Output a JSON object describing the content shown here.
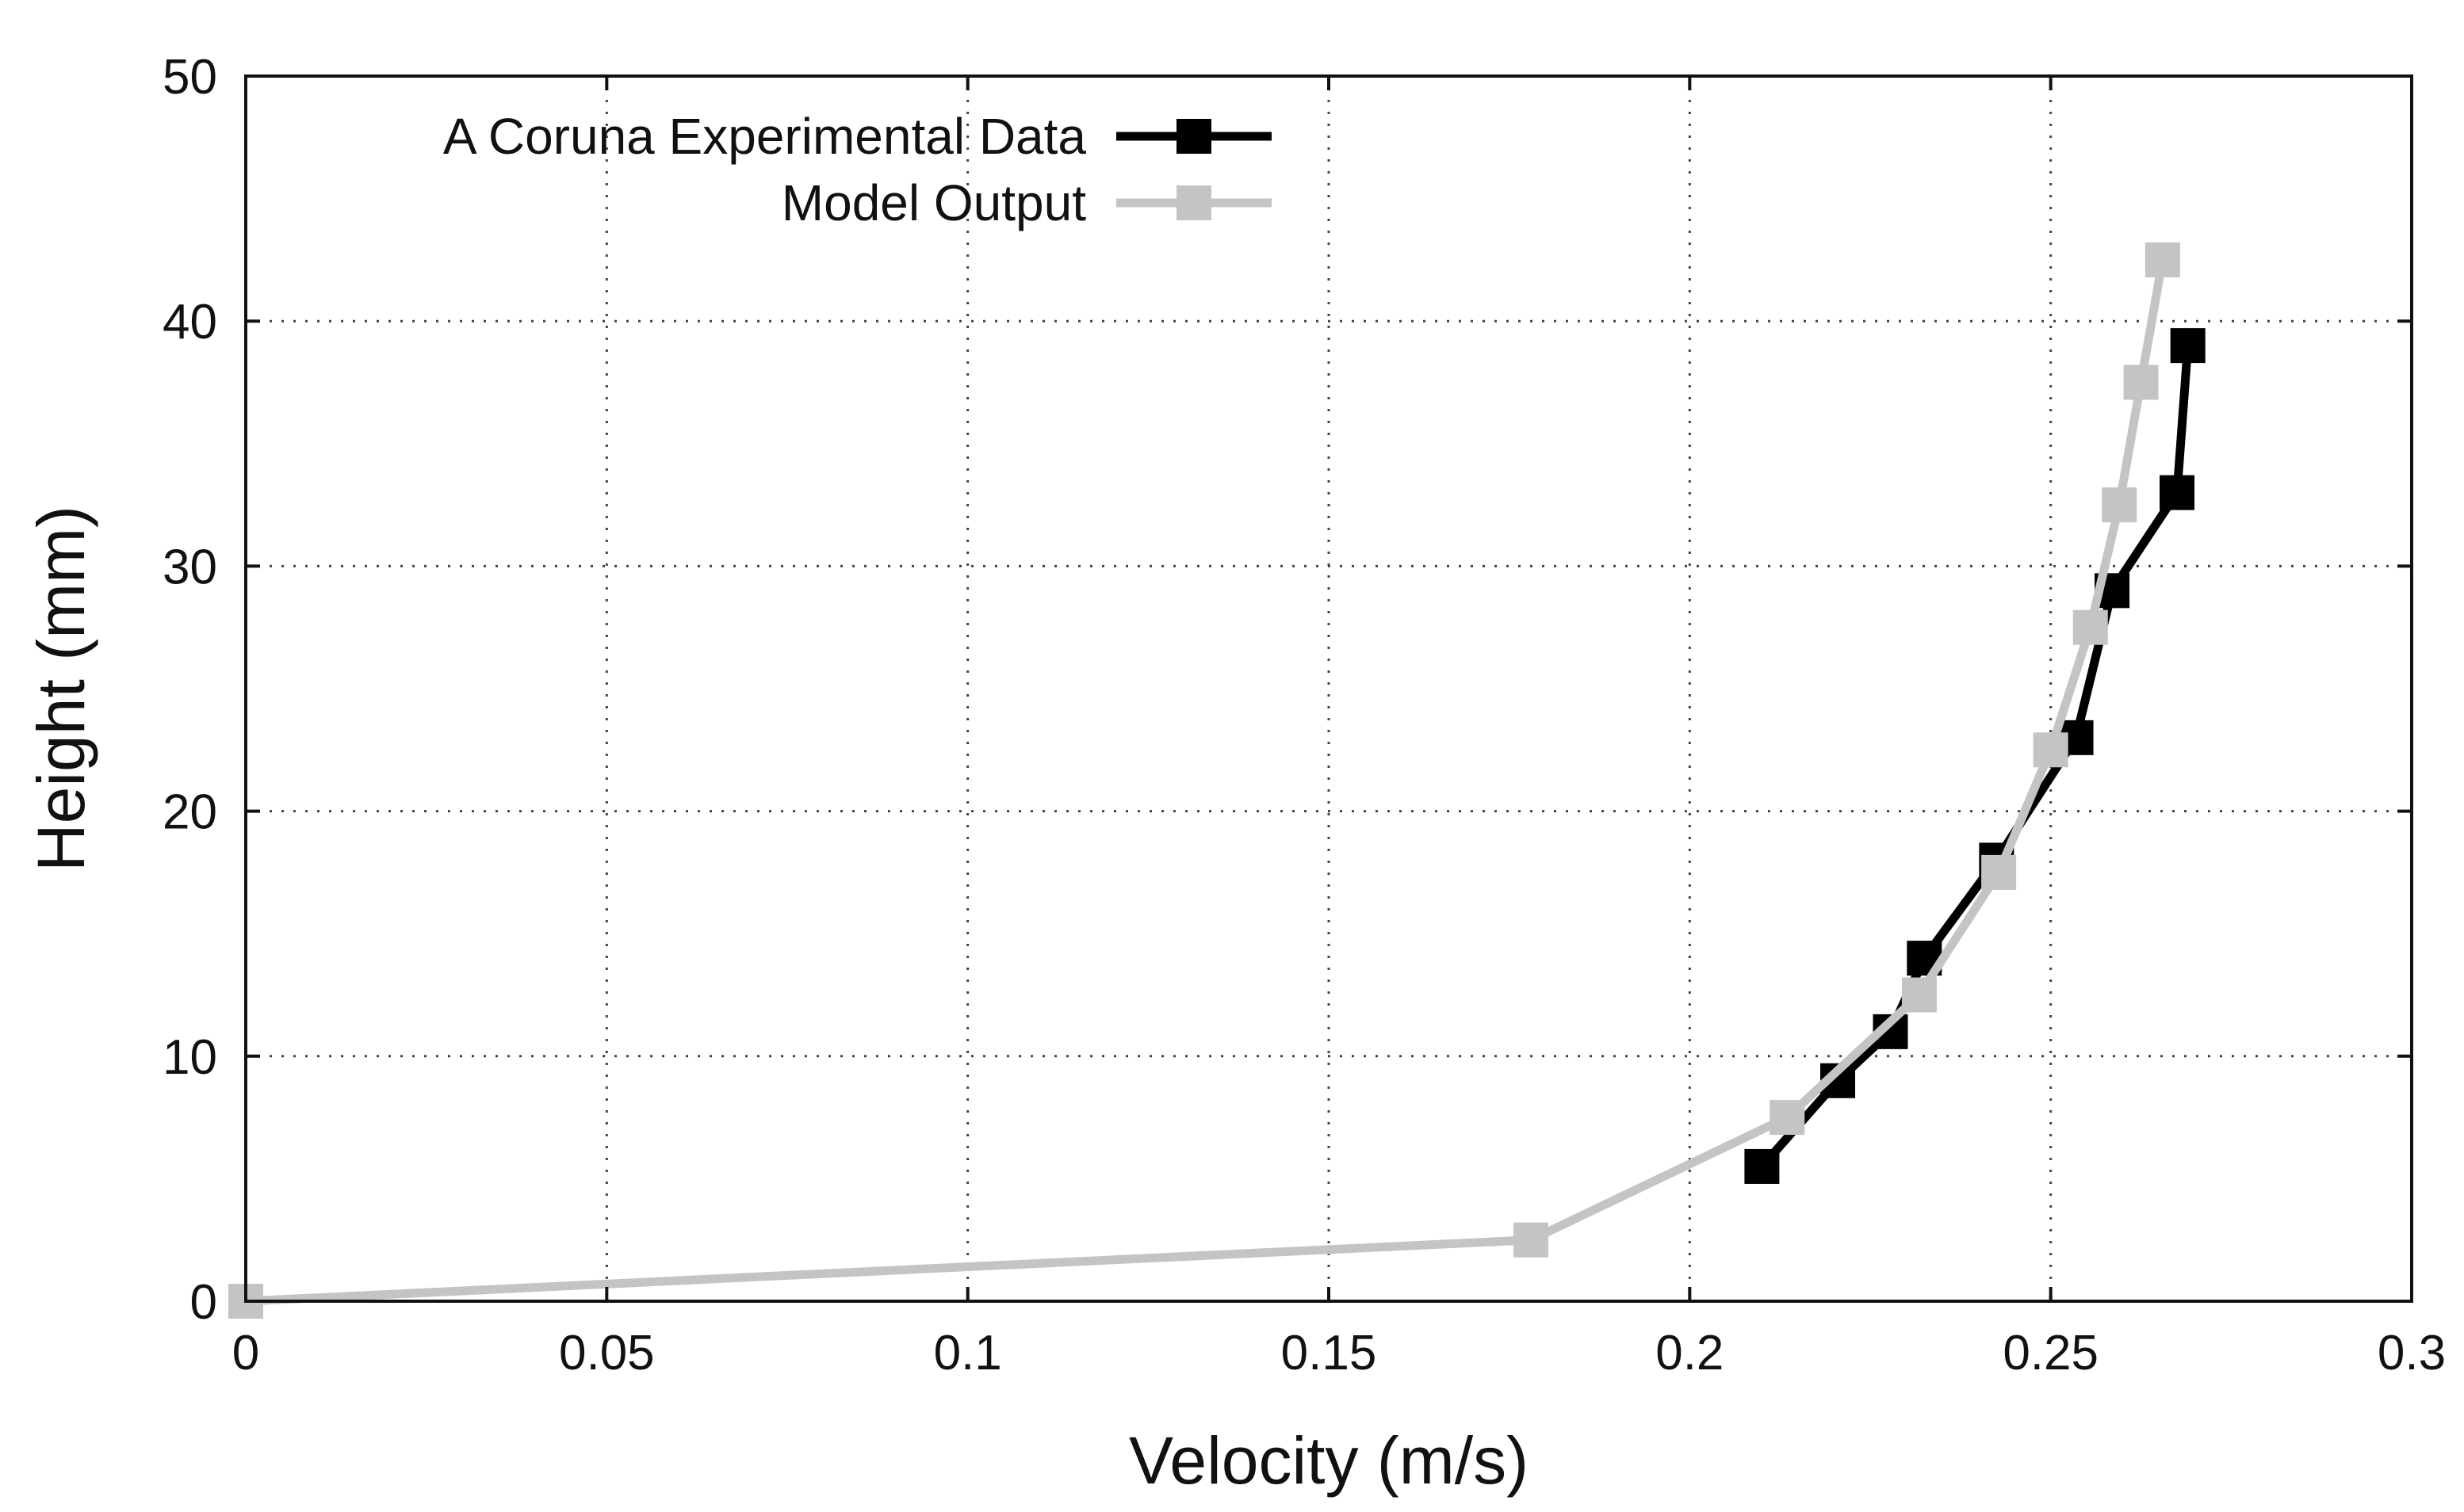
{
  "chart_data": {
    "type": "line",
    "title": "",
    "xlabel": "Velocity (m/s)",
    "ylabel": "Height (mm)",
    "xlim": [
      0,
      0.3
    ],
    "ylim": [
      0,
      50
    ],
    "xticks": [
      0,
      0.05,
      0.1,
      0.15,
      0.2,
      0.25,
      0.3
    ],
    "xtick_labels": [
      "0",
      "0.05",
      "0.1",
      "0.15",
      "0.2",
      "0.25",
      "0.3"
    ],
    "yticks": [
      0,
      10,
      20,
      30,
      40,
      50
    ],
    "ytick_labels": [
      "0",
      "10",
      "20",
      "30",
      "40",
      "50"
    ],
    "grid": true,
    "legend_position": "top-left",
    "series": [
      {
        "name": "A Coruna Experimental Data",
        "color": "#000000",
        "marker": "square",
        "x": [
          0.21,
          0.2205,
          0.2278,
          0.2325,
          0.2425,
          0.2535,
          0.2585,
          0.2675,
          0.269
        ],
        "y": [
          5.5,
          9,
          11,
          14,
          18,
          23,
          29,
          33,
          39
        ]
      },
      {
        "name": "Model Output",
        "color": "#c4c4c4",
        "marker": "square",
        "x": [
          0,
          0.178,
          0.2135,
          0.2318,
          0.2428,
          0.25,
          0.2555,
          0.2595,
          0.2625,
          0.2655
        ],
        "y": [
          0,
          2.5,
          7.5,
          12.5,
          17.5,
          22.5,
          27.5,
          32.5,
          37.5,
          42.5
        ]
      }
    ]
  }
}
